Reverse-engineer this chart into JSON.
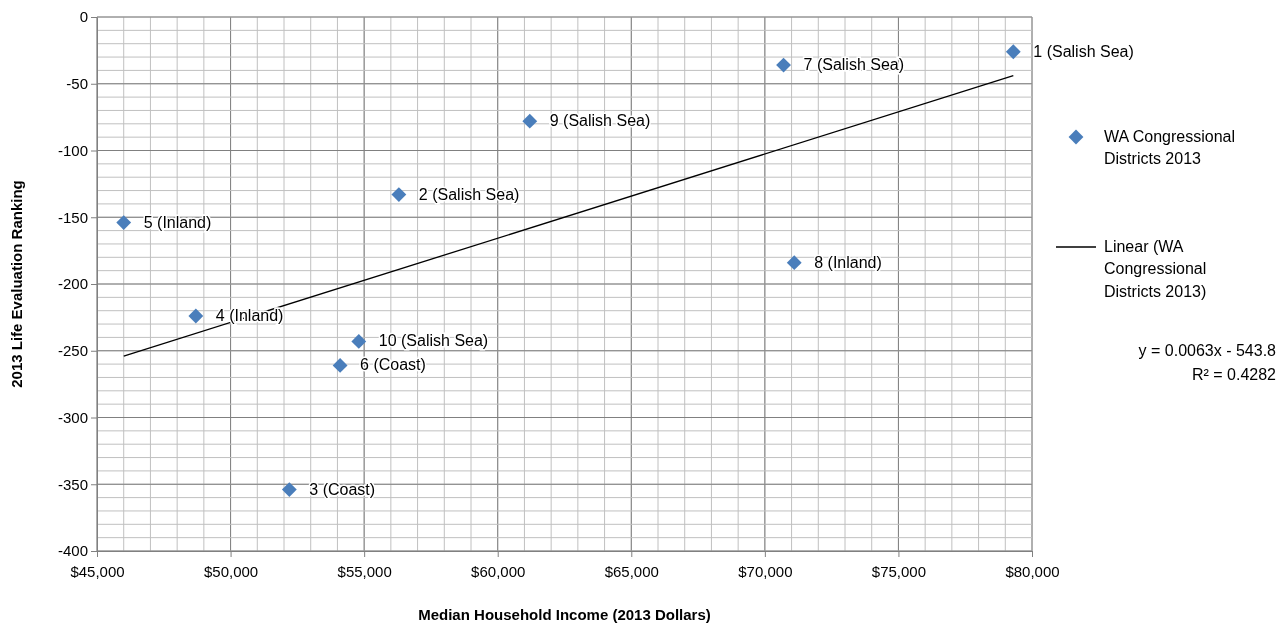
{
  "chart_data": {
    "type": "scatter",
    "xlabel": "Median Household Income (2013 Dollars)",
    "ylabel": "2013 Life Evaluation Ranking",
    "xlim": [
      45000,
      80000
    ],
    "xticks": [
      {
        "value": 45000,
        "label": "$45,000"
      },
      {
        "value": 50000,
        "label": "$50,000"
      },
      {
        "value": 55000,
        "label": "$55,000"
      },
      {
        "value": 60000,
        "label": "$60,000"
      },
      {
        "value": 65000,
        "label": "$65,000"
      },
      {
        "value": 70000,
        "label": "$70,000"
      },
      {
        "value": 75000,
        "label": "$75,000"
      },
      {
        "value": 80000,
        "label": "$80,000"
      }
    ],
    "ylim": [
      -400,
      0
    ],
    "yticks": [
      -400,
      -350,
      -300,
      -250,
      -200,
      -150,
      -100,
      -50,
      0
    ],
    "grid": true,
    "legend": "right",
    "marker": "diamond",
    "series": [
      {
        "name": "WA Congressional Districts 2013",
        "color": "#4a7ebb",
        "x": [
          79300,
          56300,
          52200,
          48700,
          46000,
          54100,
          70700,
          71100,
          61200,
          54800
        ],
        "values": [
          -26,
          -133,
          -354,
          -224,
          -154,
          -261,
          -36,
          -184,
          -78,
          -243
        ]
      },
      {
        "type": "line",
        "name": "Linear (WA Congressional Districts 2013)",
        "color": "#000000",
        "marker": "none",
        "line_style": "solid",
        "x": [
          46000,
          79300
        ],
        "values": [
          -254,
          -44
        ]
      }
    ],
    "annotations": [
      {
        "text": "1 (Salish Sea)",
        "x": 79300,
        "y": -26
      },
      {
        "text": "2 (Salish Sea)",
        "x": 56300,
        "y": -133
      },
      {
        "text": "3 (Coast)",
        "x": 52200,
        "y": -354
      },
      {
        "text": "4 (Inland)",
        "x": 48700,
        "y": -224
      },
      {
        "text": "5 (Inland)",
        "x": 46000,
        "y": -154
      },
      {
        "text": "6 (Coast)",
        "x": 54100,
        "y": -261
      },
      {
        "text": "7 (Salish Sea)",
        "x": 70700,
        "y": -36
      },
      {
        "text": "8 (Inland)",
        "x": 71100,
        "y": -184
      },
      {
        "text": "9 (Salish Sea)",
        "x": 61200,
        "y": -78
      },
      {
        "text": "10 (Salish Sea)",
        "x": 54800,
        "y": -243
      },
      "y = 0.0063x - 543.8",
      "R² = 0.4282"
    ]
  }
}
